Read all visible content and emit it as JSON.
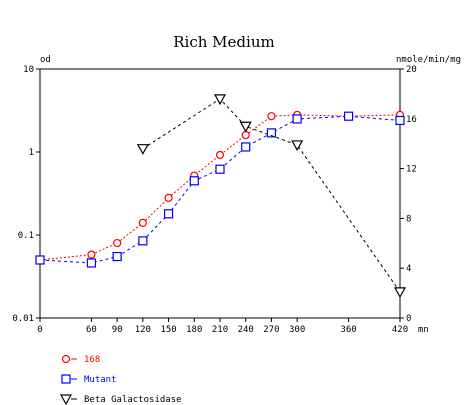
{
  "chart_data": {
    "type": "line",
    "title": "Rich Medium",
    "xlabel": "mn",
    "ylabel_left": "od",
    "ylabel_right": "nmole/min/mg",
    "x_ticks": [
      0,
      60,
      90,
      120,
      150,
      180,
      210,
      240,
      270,
      300,
      360,
      420
    ],
    "x_tick_labels": [
      "0",
      "60",
      "90",
      "120",
      "150",
      "180",
      "210",
      "240",
      "270",
      "300",
      "360",
      "420"
    ],
    "xlim": [
      0,
      420
    ],
    "ylim_left": [
      0.01,
      10
    ],
    "y_scale_left": "log",
    "y_ticks_left": [
      0.01,
      0.1,
      1,
      10
    ],
    "y_tick_labels_left": [
      "0.01",
      "0.1",
      "1",
      "10"
    ],
    "ylim_right": [
      0,
      20
    ],
    "y_ticks_right": [
      0,
      4,
      8,
      12,
      16,
      20
    ],
    "y_tick_labels_right": [
      "0",
      "4",
      "8",
      "12",
      "16",
      "20"
    ],
    "grid": false,
    "legend_position": "bottom-left",
    "series": [
      {
        "name": "168",
        "axis": "left",
        "marker": "circle",
        "color": "#ff0000",
        "line_style": "dotted",
        "x": [
          0,
          60,
          90,
          120,
          150,
          180,
          210,
          240,
          270,
          300,
          360,
          420
        ],
        "y": [
          0.05,
          0.058,
          0.08,
          0.14,
          0.28,
          0.52,
          0.92,
          1.6,
          2.7,
          2.8,
          2.7,
          2.8
        ]
      },
      {
        "name": "Mutant",
        "axis": "left",
        "marker": "square",
        "color": "#0000ff",
        "line_style": "dashed",
        "x": [
          0,
          60,
          90,
          120,
          150,
          180,
          210,
          240,
          270,
          300,
          360,
          420
        ],
        "y": [
          0.05,
          0.046,
          0.055,
          0.085,
          0.18,
          0.45,
          0.62,
          1.15,
          1.7,
          2.5,
          2.7,
          2.4
        ]
      },
      {
        "name": "Beta Galactosidase",
        "axis": "right",
        "marker": "triangle-down",
        "color": "#000000",
        "line_style": "dashed",
        "x": [
          120,
          210,
          240,
          300,
          420
        ],
        "y": [
          13.6,
          17.6,
          15.4,
          13.9,
          2.1
        ]
      }
    ]
  }
}
